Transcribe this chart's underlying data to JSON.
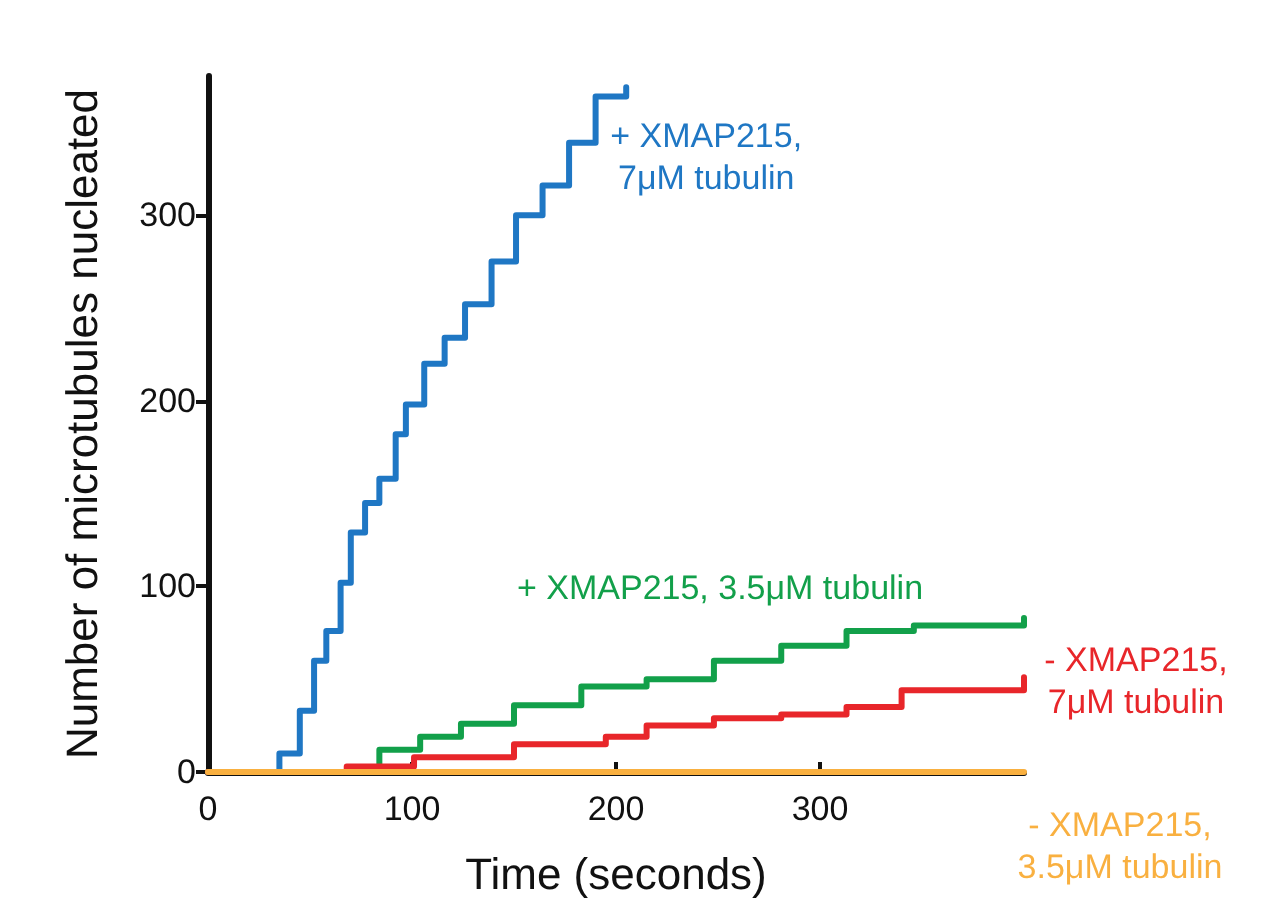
{
  "chart_data": {
    "type": "step",
    "xlabel": "Time (seconds)",
    "ylabel": "Number of microtubules nucleated",
    "xlim": [
      0,
      400
    ],
    "xticks": [
      0,
      100,
      200,
      300
    ],
    "ylim": [
      0,
      375
    ],
    "yticks": [
      0,
      100,
      200,
      300
    ],
    "grid": false,
    "legend": false,
    "marker": "none",
    "line_style": "solid",
    "series": [
      {
        "name": "+ XMAP215,\n7μM tubulin",
        "color": "#1f77c4",
        "x": [
          0,
          23,
          35,
          45,
          52,
          58,
          65,
          70,
          77,
          84,
          92,
          97,
          106,
          116,
          126,
          139,
          151,
          164,
          177,
          190,
          205
        ],
        "values": [
          0,
          0,
          10,
          33,
          60,
          76,
          102,
          129,
          145,
          158,
          182,
          198,
          220,
          234,
          252,
          275,
          300,
          316,
          339,
          364,
          369
        ]
      },
      {
        "name": "+ XMAP215, 3.5μM tubulin",
        "color": "#12a04a",
        "x": [
          0,
          55,
          84,
          104,
          124,
          150,
          183,
          215,
          248,
          281,
          313,
          346,
          400
        ],
        "values": [
          0,
          0,
          12,
          19,
          26,
          36,
          46,
          50,
          60,
          68,
          76,
          79,
          83
        ]
      },
      {
        "name": "- XMAP215,\n7μM tubulin",
        "color": "#e8262a",
        "x": [
          0,
          28,
          68,
          101,
          150,
          195,
          215,
          248,
          281,
          313,
          340,
          400
        ],
        "values": [
          0,
          0,
          3,
          8,
          15,
          19,
          25,
          29,
          31,
          35,
          44,
          51
        ]
      },
      {
        "name": "- XMAP215,\n3.5μM tubulin",
        "color": "#f9b040",
        "x": [
          0,
          400
        ],
        "values": [
          0,
          0
        ]
      }
    ]
  }
}
